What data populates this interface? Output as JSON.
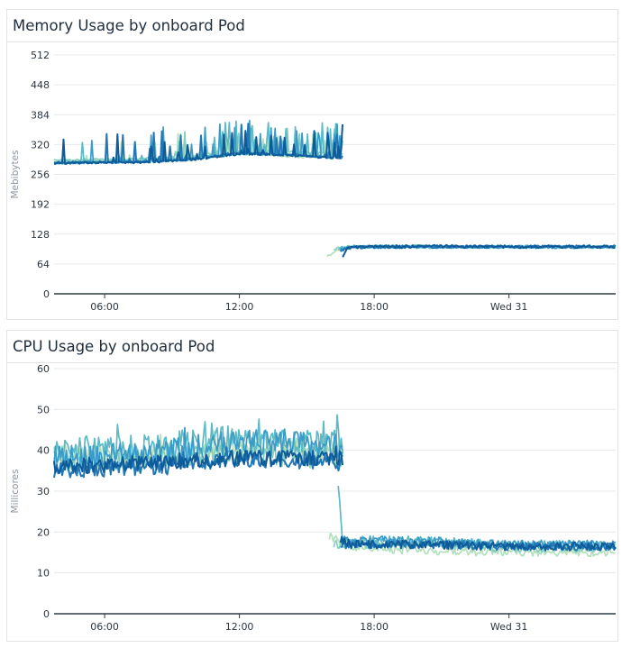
{
  "colors": {
    "grid": "#e6e9ec",
    "axis": "#2f3b45",
    "series": [
      "#b2e0bd",
      "#86cfbd",
      "#5bbac6",
      "#3a9bc9",
      "#2277b4",
      "#0e5b9a"
    ]
  },
  "panels": [
    {
      "title": "Memory Usage by onboard Pod",
      "chart_data": {
        "type": "line",
        "title": "Memory Usage by onboard Pod",
        "ylabel": "Mebibytes",
        "xlabel": "",
        "ylim": [
          0,
          512
        ],
        "yticks": [
          0,
          64,
          128,
          192,
          256,
          320,
          384,
          448,
          512
        ],
        "xrange_hours": [
          3.75,
          28.75
        ],
        "xticks": [
          {
            "h": 6,
            "label": "06:00"
          },
          {
            "h": 12,
            "label": "12:00"
          },
          {
            "h": 18,
            "label": "18:00"
          },
          {
            "h": 24,
            "label": "Wed 31"
          }
        ],
        "grid": true,
        "series": [
          {
            "before": {
              "start": 3.75,
              "end": 16.6,
              "values": [
                [
                  3.75,
                  284
                ],
                [
                  8,
                  286
                ],
                [
                  10,
                  290
                ],
                [
                  12,
                  300
                ],
                [
                  14,
                  295
                ],
                [
                  16.6,
                  290
                ]
              ],
              "spike": 55
            },
            "after": {
              "start": 15.9,
              "end": 28.75,
              "values": [
                [
                  15.9,
                  82
                ],
                [
                  16.5,
                  96
                ],
                [
                  17,
                  100
                ],
                [
                  20,
                  101
                ],
                [
                  24,
                  100
                ],
                [
                  28.75,
                  100
                ]
              ],
              "jitter": 3
            }
          },
          {
            "before": {
              "start": 3.75,
              "end": 16.6,
              "values": [
                [
                  3.75,
                  286
                ],
                [
                  8,
                  290
                ],
                [
                  10,
                  295
                ],
                [
                  12,
                  310
                ],
                [
                  14,
                  305
                ],
                [
                  16.6,
                  300
                ]
              ],
              "spike": 60
            },
            "after": {
              "start": 16.2,
              "end": 28.75,
              "values": [
                [
                  16.2,
                  96
                ],
                [
                  17,
                  102
                ],
                [
                  20,
                  102
                ],
                [
                  24,
                  101
                ],
                [
                  28.75,
                  101
                ]
              ],
              "jitter": 3
            }
          },
          {
            "before": {
              "start": 3.75,
              "end": 16.6,
              "values": [
                [
                  3.75,
                  282
                ],
                [
                  8,
                  285
                ],
                [
                  10,
                  292
                ],
                [
                  12,
                  305
                ],
                [
                  14,
                  300
                ],
                [
                  16.6,
                  295
                ]
              ],
              "spike": 70
            },
            "after": {
              "start": 16.4,
              "end": 28.75,
              "values": [
                [
                  16.4,
                  98
                ],
                [
                  17,
                  101
                ],
                [
                  20,
                  100
                ],
                [
                  24,
                  101
                ],
                [
                  28.75,
                  100
                ]
              ],
              "jitter": 3
            }
          },
          {
            "before": {
              "start": 3.75,
              "end": 16.6,
              "values": [
                [
                  3.75,
                  280
                ],
                [
                  8,
                  283
                ],
                [
                  10,
                  288
                ],
                [
                  12,
                  300
                ],
                [
                  14,
                  298
                ],
                [
                  16.6,
                  292
                ]
              ],
              "spike": 75
            },
            "after": {
              "start": 16.5,
              "end": 28.75,
              "values": [
                [
                  16.5,
                  95
                ],
                [
                  17,
                  100
                ],
                [
                  20,
                  101
                ],
                [
                  24,
                  100
                ],
                [
                  28.75,
                  100
                ]
              ],
              "jitter": 3
            }
          },
          {
            "before": {
              "start": 3.75,
              "end": 16.6,
              "values": [
                [
                  3.75,
                  281
                ],
                [
                  8,
                  284
                ],
                [
                  10,
                  290
                ],
                [
                  12,
                  302
                ],
                [
                  14,
                  300
                ],
                [
                  16.6,
                  290
                ]
              ],
              "spike": 65
            },
            "after": {
              "start": 16.5,
              "end": 28.75,
              "values": [
                [
                  16.5,
                  92
                ],
                [
                  17,
                  100
                ],
                [
                  20,
                  101
                ],
                [
                  24,
                  101
                ],
                [
                  28.75,
                  101
                ]
              ],
              "jitter": 3
            }
          },
          {
            "before": {
              "start": 3.75,
              "end": 16.6,
              "values": [
                [
                  3.75,
                  280
                ],
                [
                  8,
                  282
                ],
                [
                  10,
                  288
                ],
                [
                  12,
                  300
                ],
                [
                  14,
                  298
                ],
                [
                  16.5,
                  290
                ],
                [
                  16.6,
                  372
                ]
              ],
              "spike": 70
            },
            "after": {
              "start": 16.6,
              "end": 28.75,
              "values": [
                [
                  16.6,
                  80
                ],
                [
                  16.8,
                  96
                ],
                [
                  17,
                  100
                ],
                [
                  20,
                  102
                ],
                [
                  24,
                  101
                ],
                [
                  28.75,
                  101
                ]
              ],
              "jitter": 3
            }
          }
        ]
      }
    },
    {
      "title": "CPU Usage by onboard Pod",
      "chart_data": {
        "type": "line",
        "title": "CPU Usage by onboard Pod",
        "ylabel": "Millicores",
        "xlabel": "",
        "ylim": [
          0,
          60
        ],
        "yticks": [
          0,
          10,
          20,
          30,
          40,
          50,
          60
        ],
        "xrange_hours": [
          3.75,
          28.75
        ],
        "xticks": [
          {
            "h": 6,
            "label": "06:00"
          },
          {
            "h": 12,
            "label": "12:00"
          },
          {
            "h": 18,
            "label": "18:00"
          },
          {
            "h": 24,
            "label": "Wed 31"
          }
        ],
        "grid": true,
        "series": [
          {
            "before": {
              "start": 3.75,
              "end": 16.6,
              "values": [
                [
                  3.75,
                  39
                ],
                [
                  8,
                  39
                ],
                [
                  12,
                  41
                ],
                [
                  16.6,
                  40
                ]
              ],
              "spike": 4
            },
            "after": {
              "start": 16.0,
              "end": 28.75,
              "values": [
                [
                  16.0,
                  19
                ],
                [
                  17,
                  16
                ],
                [
                  20,
                  15.5
                ],
                [
                  24,
                  15
                ],
                [
                  28.75,
                  15
                ]
              ],
              "jitter": 1.0
            }
          },
          {
            "before": {
              "start": 3.75,
              "end": 16.6,
              "values": [
                [
                  3.75,
                  37
                ],
                [
                  8,
                  38
                ],
                [
                  12,
                  39
                ],
                [
                  16.6,
                  38
                ]
              ],
              "spike": 4
            },
            "after": {
              "start": 16.2,
              "end": 28.75,
              "values": [
                [
                  16.2,
                  17
                ],
                [
                  17,
                  17
                ],
                [
                  20,
                  17
                ],
                [
                  24,
                  16
                ],
                [
                  28.75,
                  16
                ]
              ],
              "jitter": 1.0
            }
          },
          {
            "before": {
              "start": 3.75,
              "end": 16.6,
              "values": [
                [
                  3.75,
                  40
                ],
                [
                  8,
                  41
                ],
                [
                  12,
                  43
                ],
                [
                  16.6,
                  42
                ]
              ],
              "spike": 5
            },
            "after": {
              "start": 16.4,
              "end": 28.75,
              "values": [
                [
                  16.4,
                  32
                ],
                [
                  16.6,
                  18
                ],
                [
                  17,
                  18
                ],
                [
                  20,
                  18
                ],
                [
                  24,
                  17
                ],
                [
                  28.75,
                  17
                ]
              ],
              "jitter": 1.0
            }
          },
          {
            "before": {
              "start": 3.75,
              "end": 16.6,
              "values": [
                [
                  3.75,
                  38
                ],
                [
                  8,
                  39
                ],
                [
                  12,
                  42
                ],
                [
                  16.6,
                  41
                ]
              ],
              "spike": 5
            },
            "after": {
              "start": 16.5,
              "end": 28.75,
              "values": [
                [
                  16.5,
                  18
                ],
                [
                  17,
                  18
                ],
                [
                  20,
                  18
                ],
                [
                  24,
                  17
                ],
                [
                  28.75,
                  17
                ]
              ],
              "jitter": 1.0
            }
          },
          {
            "before": {
              "start": 3.75,
              "end": 16.6,
              "values": [
                [
                  3.75,
                  35
                ],
                [
                  8,
                  36
                ],
                [
                  12,
                  38
                ],
                [
                  16.6,
                  37
                ]
              ],
              "spike": 3
            },
            "after": {
              "start": 16.5,
              "end": 28.75,
              "values": [
                [
                  16.5,
                  17
                ],
                [
                  17,
                  17
                ],
                [
                  20,
                  17
                ],
                [
                  24,
                  16.5
                ],
                [
                  28.75,
                  16.5
                ]
              ],
              "jitter": 1.0
            }
          },
          {
            "before": {
              "start": 3.75,
              "end": 16.6,
              "values": [
                [
                  3.75,
                  36
                ],
                [
                  8,
                  37
                ],
                [
                  12,
                  38
                ],
                [
                  16.6,
                  38
                ]
              ],
              "spike": 3
            },
            "after": {
              "start": 16.5,
              "end": 28.75,
              "values": [
                [
                  16.5,
                  18
                ],
                [
                  17,
                  17
                ],
                [
                  20,
                  17
                ],
                [
                  24,
                  16.5
                ],
                [
                  28.75,
                  16.5
                ]
              ],
              "jitter": 1.0
            }
          }
        ]
      }
    }
  ]
}
